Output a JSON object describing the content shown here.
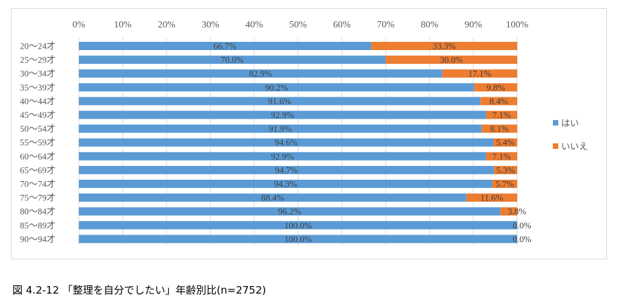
{
  "caption": "図 4.2-12 「整理を自分でしたい」年齢別比(n=2752)",
  "colors": {
    "yes": "#5B9BD5",
    "no": "#ED7D31",
    "grid": "#d9d9d9",
    "axis_text": "#595959"
  },
  "chart_data": {
    "type": "bar",
    "orientation": "horizontal",
    "stacked": "percent",
    "title": "",
    "xlim": [
      0,
      100
    ],
    "x_ticks": [
      "0%",
      "10%",
      "20%",
      "30%",
      "40%",
      "50%",
      "60%",
      "70%",
      "80%",
      "90%",
      "100%"
    ],
    "legend_position": "right",
    "categories": [
      "20～24才",
      "25～29才",
      "30～34才",
      "35～39才",
      "40～44才",
      "45～49才",
      "50～54才",
      "55～59才",
      "60～64才",
      "65～69才",
      "70～74才",
      "75～79才",
      "80～84才",
      "85～89才",
      "90～94才"
    ],
    "series": [
      {
        "name": "はい",
        "values": [
          66.7,
          70.0,
          82.9,
          90.2,
          91.6,
          92.9,
          91.9,
          94.6,
          92.9,
          94.7,
          94.3,
          88.4,
          96.2,
          100.0,
          100.0
        ],
        "labels": [
          "66.7%",
          "70.0%",
          "82.9%",
          "90.2%",
          "91.6%",
          "92.9%",
          "91.9%",
          "94.6%",
          "92.9%",
          "94.7%",
          "94.3%",
          "88.4%",
          "96.2%",
          "100.0%",
          "100.0%"
        ]
      },
      {
        "name": "いいえ",
        "values": [
          33.3,
          30.0,
          17.1,
          9.8,
          8.4,
          7.1,
          8.1,
          5.4,
          7.1,
          5.3,
          5.7,
          11.6,
          3.8,
          0.0,
          0.0
        ],
        "labels": [
          "33.3%",
          "30.0%",
          "17.1%",
          "9.8%",
          "8.4%",
          "7.1%",
          "8.1%",
          "5.4%",
          "7.1%",
          "5.3%",
          "5.7%",
          "11.6%",
          "3.8%",
          "0.0%",
          "0.0%"
        ]
      }
    ]
  }
}
